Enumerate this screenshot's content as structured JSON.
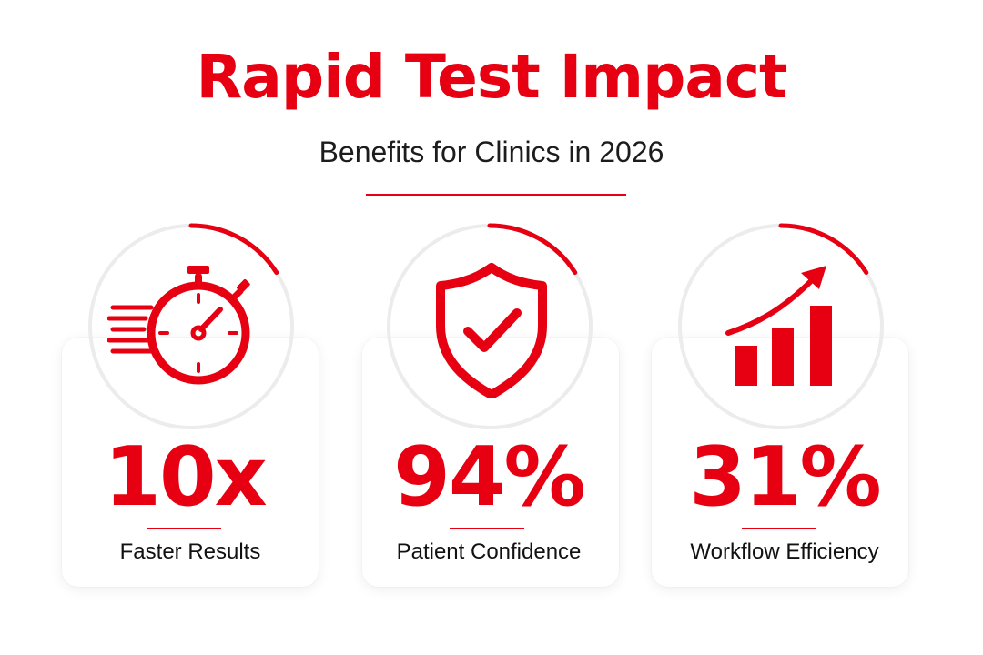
{
  "header": {
    "title": "Rapid Test Impact",
    "subtitle": "Benefits for Clinics in 2026"
  },
  "colors": {
    "accent": "#e60012",
    "text": "#111111",
    "ring_track": "#ececec",
    "card_bg": "#ffffff"
  },
  "stats": [
    {
      "icon": "stopwatch-icon",
      "value": "10x",
      "label": "Faster Results",
      "ring_fraction": 0.16
    },
    {
      "icon": "shield-check-icon",
      "value": "94%",
      "label": "Patient Confidence",
      "ring_fraction": 0.16
    },
    {
      "icon": "bar-chart-growth-icon",
      "value": "31%",
      "label": "Workflow Efficiency",
      "ring_fraction": 0.16
    }
  ]
}
